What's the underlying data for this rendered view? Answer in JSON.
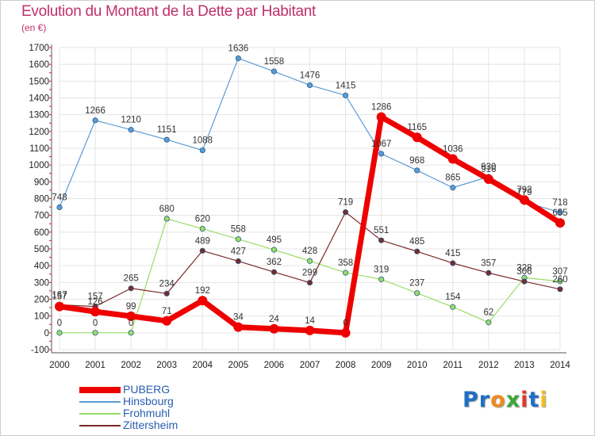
{
  "header": {
    "title": "Evolution du Montant de la Dette par Habitant",
    "subtitle": "(en €)"
  },
  "logo": {
    "text": "Proxiti",
    "letters": [
      "P",
      "r",
      "o",
      "x",
      "i",
      "t",
      "i"
    ],
    "colors": [
      "#1f6fc5",
      "#1f6fc5",
      "#f08a1c",
      "#3aa83a",
      "#e23a2a",
      "#1f6fc5",
      "#f0c020"
    ]
  },
  "chart_data": {
    "type": "line",
    "title": "Evolution du Montant de la Dette par Habitant",
    "subtitle": "(en €)",
    "xlabel": "",
    "ylabel": "",
    "ylim": [
      -100,
      1700
    ],
    "yticks": [
      -100,
      0,
      100,
      200,
      300,
      400,
      500,
      600,
      700,
      800,
      900,
      1000,
      1100,
      1200,
      1300,
      1400,
      1500,
      1600,
      1700
    ],
    "grid": true,
    "legend_position": "bottom-left",
    "categories": [
      "2000",
      "2001",
      "2002",
      "2003",
      "2004",
      "2005",
      "2006",
      "2007",
      "2008",
      "2009",
      "2010",
      "2011",
      "2012",
      "2013",
      "2014"
    ],
    "series": [
      {
        "name": "Hinsbourg",
        "color": "#5b9bd5",
        "width": 1.2,
        "values": [
          748,
          1266,
          1210,
          1151,
          1088,
          1636,
          1558,
          1476,
          1415,
          1067,
          968,
          865,
          930,
          779,
          718
        ]
      },
      {
        "name": "Frohmuhl",
        "color": "#99dd66",
        "width": 1.2,
        "values": [
          0,
          0,
          0,
          680,
          620,
          558,
          495,
          428,
          358,
          319,
          237,
          154,
          62,
          328,
          307
        ]
      },
      {
        "name": "Zittersheim",
        "color": "#7a2a2a",
        "width": 1.2,
        "values": [
          167,
          157,
          265,
          234,
          489,
          427,
          362,
          299,
          719,
          551,
          485,
          415,
          357,
          306,
          260
        ]
      },
      {
        "name": "PUBERG",
        "color": "#ee0000",
        "width": 7,
        "values": [
          157,
          126,
          99,
          71,
          192,
          34,
          24,
          14,
          0,
          1286,
          1165,
          1036,
          916,
          792,
          655
        ]
      }
    ],
    "legend_order": [
      "PUBERG",
      "Hinsbourg",
      "Frohmuhl",
      "Zittersheim"
    ]
  }
}
